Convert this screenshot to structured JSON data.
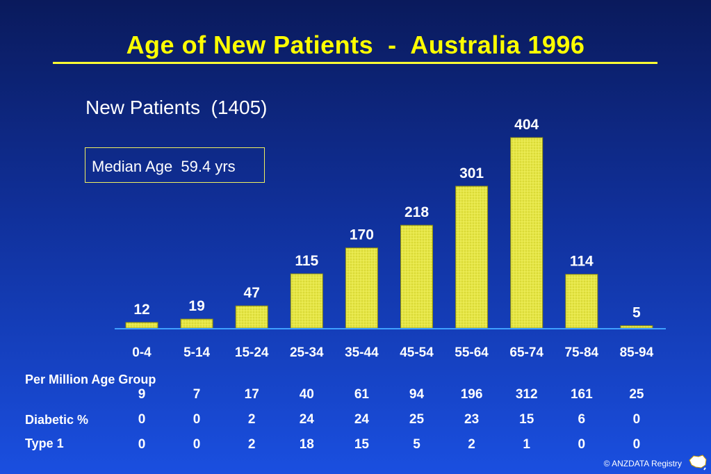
{
  "slide": {
    "title": "Age of New Patients  -  Australia 1996",
    "subtitle": "New Patients  (1405)",
    "median_label": "Median Age  59.4 yrs",
    "footer": "© ANZDATA Registry"
  },
  "colors": {
    "title": "#ffff00",
    "bar": "#e8e84a",
    "bar_edge": "#8a8a10",
    "baseline": "#3fa0ff"
  },
  "table": {
    "rows": [
      {
        "label": "Per Million Age Group",
        "values": [
          "9",
          "7",
          "17",
          "40",
          "61",
          "94",
          "196",
          "312",
          "161",
          "25"
        ]
      },
      {
        "label": "Diabetic %",
        "values": [
          "0",
          "0",
          "2",
          "24",
          "24",
          "25",
          "23",
          "15",
          "6",
          "0"
        ]
      },
      {
        "label": "Type 1",
        "values": [
          "0",
          "0",
          "2",
          "18",
          "15",
          "5",
          "2",
          "1",
          "0",
          "0"
        ]
      }
    ]
  },
  "chart_data": {
    "type": "bar",
    "title": "Age of New Patients  -  Australia 1996",
    "xlabel": "",
    "ylabel": "",
    "categories": [
      "0-4",
      "5-14",
      "15-24",
      "25-34",
      "35-44",
      "45-54",
      "55-64",
      "65-74",
      "75-84",
      "85-94"
    ],
    "values": [
      12,
      19,
      47,
      115,
      170,
      218,
      301,
      404,
      114,
      5
    ],
    "ylim": [
      0,
      404
    ],
    "grid": false,
    "data_labels": true
  }
}
